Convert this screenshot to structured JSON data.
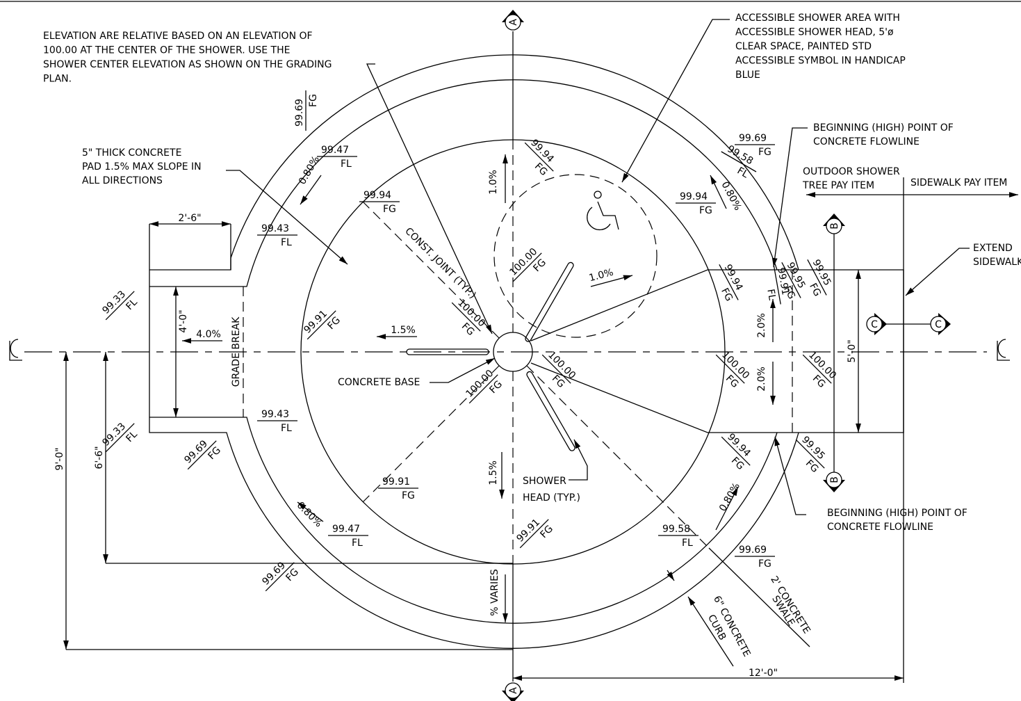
{
  "notes": {
    "elevation": [
      "ELEVATION ARE RELATIVE BASED ON AN ELEVATION OF",
      "100.00 AT THE CENTER OF THE SHOWER.  USE THE",
      "SHOWER CENTER ELEVATION AS SHOWN ON THE GRADING",
      "PLAN."
    ],
    "pad": [
      "5\" THICK CONCRETE",
      "PAD 1.5% MAX SLOPE IN",
      "ALL DIRECTIONS"
    ],
    "accessible": [
      "ACCESSIBLE SHOWER AREA WITH",
      "ACCESSIBLE SHOWER HEAD, 5'ø",
      "CLEAR SPACE, PAINTED STD",
      "ACCESSIBLE SYMBOL IN HANDICAP",
      "BLUE"
    ],
    "high_point_top": [
      "BEGINNING (HIGH) POINT OF",
      "CONCRETE FLOWLINE"
    ],
    "high_point_bottom": [
      "BEGINNING (HIGH) POINT OF",
      "CONCRETE FLOWLINE"
    ],
    "outdoor_shower": [
      "OUTDOOR SHOWER",
      "TREE PAY ITEM"
    ],
    "sidewalk_pay": "SIDEWALK PAY ITEM",
    "extend": [
      "EXTEND",
      "SIDEWALK"
    ],
    "concrete_base": "CONCRETE BASE",
    "shower_head": [
      "SHOWER",
      "HEAD (TYP.)"
    ],
    "const_joint": "CONST. JOINT (TYP.)",
    "grade_break": "GRADE BREAK",
    "swale": [
      "2' CONCRETE",
      "SWALE"
    ],
    "curb": [
      "6\" CONCRETE",
      "CURB"
    ]
  },
  "dimensions": [
    "2'-6\"",
    "4'-0\"",
    "9'-0\"",
    "6'-6\"",
    "5'-0\"",
    "12'-0\""
  ],
  "slopes": [
    "4.0%",
    "1.5%",
    "1.0%",
    "1.0%",
    "0.80%",
    "0.80%",
    "0.80%",
    "0.80%",
    "2.0%",
    "2.0%",
    "1.5%",
    "% VARIES"
  ],
  "sections": [
    "A",
    "A",
    "B",
    "B",
    "C",
    "C"
  ],
  "elevations": [
    {
      "value": "99.69",
      "code": "FG"
    },
    {
      "value": "99.47",
      "code": "FL"
    },
    {
      "value": "99.94",
      "code": "FG"
    },
    {
      "value": "99.94",
      "code": "FG"
    },
    {
      "value": "99.69",
      "code": "FG"
    },
    {
      "value": "99.58",
      "code": "FL"
    },
    {
      "value": "99.94",
      "code": "FG"
    },
    {
      "value": "99.43",
      "code": "FL"
    },
    {
      "value": "99.33",
      "code": "FL"
    },
    {
      "value": "99.91",
      "code": "FG"
    },
    {
      "value": "100.00",
      "code": "FG"
    },
    {
      "value": "100.00",
      "code": "FG"
    },
    {
      "value": "100.00",
      "code": "FG"
    },
    {
      "value": "100.00",
      "code": "FG"
    },
    {
      "value": "99.94",
      "code": "FG"
    },
    {
      "value": "99.91",
      "code": "FL"
    },
    {
      "value": "99.95",
      "code": "FG"
    },
    {
      "value": "99.95",
      "code": "FG"
    },
    {
      "value": "100.00",
      "code": "FG"
    },
    {
      "value": "100.00",
      "code": "FG"
    },
    {
      "value": "99.43",
      "code": "FL"
    },
    {
      "value": "99.33",
      "code": "FL"
    },
    {
      "value": "99.69",
      "code": "FG"
    },
    {
      "value": "99.94",
      "code": "FG"
    },
    {
      "value": "99.95",
      "code": "FG"
    },
    {
      "value": "99.91",
      "code": "FG"
    },
    {
      "value": "99.47",
      "code": "FL"
    },
    {
      "value": "99.91",
      "code": "FG"
    },
    {
      "value": "99.58",
      "code": "FL"
    },
    {
      "value": "99.69",
      "code": "FG"
    },
    {
      "value": "99.69",
      "code": "FG"
    }
  ]
}
